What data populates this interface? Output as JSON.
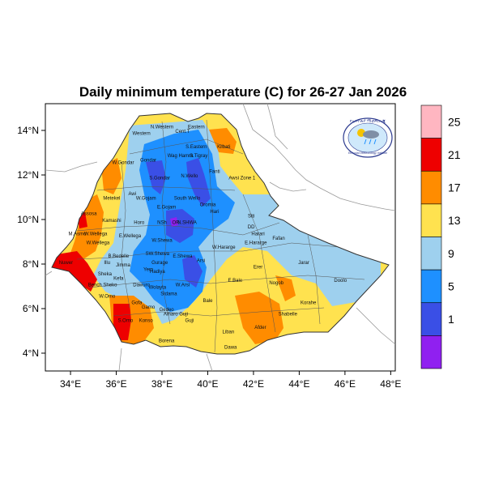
{
  "title": "Daily minimum temperature (C) for 26-27 Jan 2026",
  "axes": {
    "x_ticks": [
      "34°E",
      "36°E",
      "38°E",
      "40°E",
      "42°E",
      "44°E",
      "46°E",
      "48°E"
    ],
    "y_ticks": [
      "4°N",
      "6°N",
      "8°N",
      "10°N",
      "12°N",
      "14°N"
    ],
    "xlim": [
      32.9,
      48.2
    ],
    "ylim": [
      3.2,
      15.2
    ]
  },
  "colorbar": {
    "labels": [
      "25",
      "21",
      "17",
      "13",
      "9",
      "5",
      "1"
    ],
    "colors": [
      "#ffb6c1",
      "#ee0000",
      "#ff8c00",
      "#ffe24f",
      "#9ed0ee",
      "#1e90ff",
      "#3a4fe6",
      "#9020f0"
    ]
  },
  "logo": {
    "top_text": "የኢትዮጵያ ሚቲዎሮሎጂ",
    "bottom_text": "Ethiopian Meteorology Institute",
    "icon": "meteorology-logo-icon"
  },
  "regions": [
    {
      "name": "Western",
      "lon": 37.1,
      "lat": 13.8
    },
    {
      "name": "N.Western",
      "lon": 38.0,
      "lat": 14.1
    },
    {
      "name": "Cent.T",
      "lon": 38.9,
      "lat": 13.9
    },
    {
      "name": "Eastern",
      "lon": 39.5,
      "lat": 14.1
    },
    {
      "name": "S.Eastern",
      "lon": 39.5,
      "lat": 13.2
    },
    {
      "name": "Kilbati",
      "lon": 40.7,
      "lat": 13.2
    },
    {
      "name": "Gondar",
      "lon": 37.4,
      "lat": 12.6
    },
    {
      "name": "Wag Hamra",
      "lon": 38.8,
      "lat": 12.8
    },
    {
      "name": "S.Tigray",
      "lon": 39.6,
      "lat": 12.8
    },
    {
      "name": "W.Gondar",
      "lon": 36.3,
      "lat": 12.5
    },
    {
      "name": "S.Gondar",
      "lon": 37.9,
      "lat": 11.8
    },
    {
      "name": "N.Wello",
      "lon": 39.2,
      "lat": 11.9
    },
    {
      "name": "Fanti",
      "lon": 40.3,
      "lat": 12.1
    },
    {
      "name": "Awsi Zone 1",
      "lon": 41.5,
      "lat": 11.8
    },
    {
      "name": "Awi",
      "lon": 36.7,
      "lat": 11.1
    },
    {
      "name": "Metekel",
      "lon": 35.8,
      "lat": 10.9
    },
    {
      "name": "W.Gojam",
      "lon": 37.3,
      "lat": 10.9
    },
    {
      "name": "South Wello",
      "lon": 39.1,
      "lat": 10.9
    },
    {
      "name": "E.Gojam",
      "lon": 38.2,
      "lat": 10.5
    },
    {
      "name": "Oromia",
      "lon": 40.0,
      "lat": 10.6
    },
    {
      "name": "Hari",
      "lon": 40.3,
      "lat": 10.3
    },
    {
      "name": "Assosa",
      "lon": 34.8,
      "lat": 10.2
    },
    {
      "name": "Kamashi",
      "lon": 35.8,
      "lat": 9.9
    },
    {
      "name": "Horo",
      "lon": 37.0,
      "lat": 9.8
    },
    {
      "name": "NSh",
      "lon": 38.0,
      "lat": 9.8
    },
    {
      "name": "OR",
      "lon": 38.6,
      "lat": 9.8
    },
    {
      "name": "N.SHWA",
      "lon": 39.1,
      "lat": 9.8
    },
    {
      "name": "Siti",
      "lon": 41.9,
      "lat": 10.1
    },
    {
      "name": "DD",
      "lon": 41.9,
      "lat": 9.6
    },
    {
      "name": "M.Asmo",
      "lon": 34.3,
      "lat": 9.3
    },
    {
      "name": "W.Wellega",
      "lon": 35.1,
      "lat": 9.3
    },
    {
      "name": "E.Wellega",
      "lon": 36.6,
      "lat": 9.2
    },
    {
      "name": "Harari",
      "lon": 42.2,
      "lat": 9.3
    },
    {
      "name": "Fafan",
      "lon": 43.1,
      "lat": 9.1
    },
    {
      "name": "W.Wellega",
      "lon": 35.2,
      "lat": 8.9
    },
    {
      "name": "W.Shewa",
      "lon": 38.0,
      "lat": 9.0
    },
    {
      "name": "W.Hararge",
      "lon": 40.7,
      "lat": 8.7
    },
    {
      "name": "E.Hararge",
      "lon": 42.1,
      "lat": 8.9
    },
    {
      "name": "Arsi",
      "lon": 39.7,
      "lat": 8.1
    },
    {
      "name": "B.Bedelle",
      "lon": 36.1,
      "lat": 8.3
    },
    {
      "name": "SW.Shewa",
      "lon": 37.8,
      "lat": 8.4
    },
    {
      "name": "E.Shewa",
      "lon": 38.9,
      "lat": 8.3
    },
    {
      "name": "Jarar",
      "lon": 44.2,
      "lat": 8.0
    },
    {
      "name": "Nuwer",
      "lon": 33.8,
      "lat": 8.0
    },
    {
      "name": "Jimma",
      "lon": 36.3,
      "lat": 7.9
    },
    {
      "name": "Gurage",
      "lon": 37.9,
      "lat": 8.0
    },
    {
      "name": "Erer",
      "lon": 42.2,
      "lat": 7.8
    },
    {
      "name": "Illu",
      "lon": 35.6,
      "lat": 8.0
    },
    {
      "name": "Yem",
      "lon": 37.4,
      "lat": 7.7
    },
    {
      "name": "Hadiya",
      "lon": 37.8,
      "lat": 7.6
    },
    {
      "name": "Sheka",
      "lon": 35.5,
      "lat": 7.5
    },
    {
      "name": "Kefa",
      "lon": 36.1,
      "lat": 7.3
    },
    {
      "name": "Dawuro",
      "lon": 37.1,
      "lat": 7.0
    },
    {
      "name": "Wolayta",
      "lon": 37.8,
      "lat": 6.9
    },
    {
      "name": "W.Arsi",
      "lon": 38.9,
      "lat": 7.0
    },
    {
      "name": "E.Bale",
      "lon": 41.2,
      "lat": 7.2
    },
    {
      "name": "Nogob",
      "lon": 43.0,
      "lat": 7.1
    },
    {
      "name": "Doolo",
      "lon": 45.8,
      "lat": 7.2
    },
    {
      "name": "Bench Sheko",
      "lon": 35.4,
      "lat": 7.0
    },
    {
      "name": "Sidama",
      "lon": 38.3,
      "lat": 6.6
    },
    {
      "name": "W.Omo",
      "lon": 35.6,
      "lat": 6.5
    },
    {
      "name": "Bale",
      "lon": 40.0,
      "lat": 6.3
    },
    {
      "name": "Korahe",
      "lon": 44.4,
      "lat": 6.2
    },
    {
      "name": "Gofa",
      "lon": 36.9,
      "lat": 6.2
    },
    {
      "name": "Gamo",
      "lon": 37.4,
      "lat": 6.0
    },
    {
      "name": "Gedeo",
      "lon": 38.2,
      "lat": 5.9
    },
    {
      "name": "Amaro Guji",
      "lon": 38.6,
      "lat": 5.7
    },
    {
      "name": "Shabelle",
      "lon": 43.5,
      "lat": 5.7
    },
    {
      "name": "S.Omo",
      "lon": 36.4,
      "lat": 5.4
    },
    {
      "name": "Konso",
      "lon": 37.3,
      "lat": 5.4
    },
    {
      "name": "Guji",
      "lon": 39.2,
      "lat": 5.4
    },
    {
      "name": "Liban",
      "lon": 40.9,
      "lat": 4.9
    },
    {
      "name": "Afder",
      "lon": 42.3,
      "lat": 5.1
    },
    {
      "name": "Borena",
      "lon": 38.2,
      "lat": 4.5
    },
    {
      "name": "Dawa",
      "lon": 41.0,
      "lat": 4.2
    }
  ]
}
